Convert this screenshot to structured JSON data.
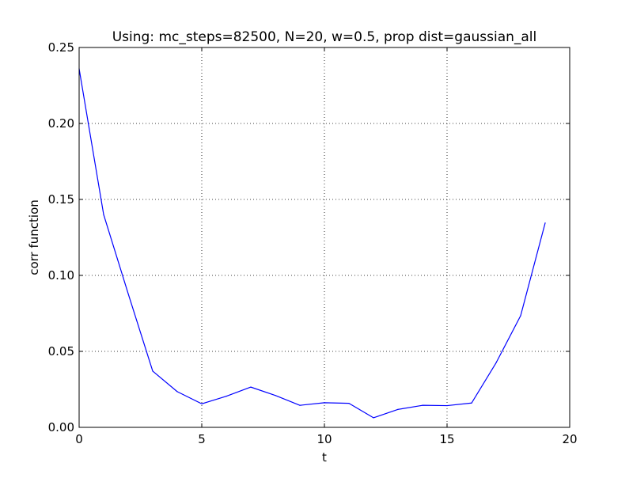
{
  "chart_data": {
    "type": "line",
    "title": "Using: mc_steps=82500, N=20, w=0.5, prop dist=gaussian_all",
    "xlabel": "t",
    "ylabel": "corr function",
    "xlim": [
      0,
      20
    ],
    "ylim": [
      0,
      0.25
    ],
    "xticks": [
      0,
      5,
      10,
      15,
      20
    ],
    "xtick_labels": [
      "0",
      "5",
      "10",
      "15",
      "20"
    ],
    "yticks": [
      0,
      0.05,
      0.1,
      0.15,
      0.2,
      0.25
    ],
    "ytick_labels": [
      "0.00",
      "0.05",
      "0.10",
      "0.15",
      "0.20",
      "0.25"
    ],
    "grid": true,
    "grid_style": "dotted",
    "legend": "none",
    "series": [
      {
        "color": "#0000ff",
        "x": [
          0,
          1,
          2,
          3,
          4,
          5,
          6,
          7,
          8,
          9,
          10,
          11,
          12,
          13,
          14,
          15,
          16,
          17,
          18,
          19
        ],
        "y": [
          0.236,
          0.14,
          0.088,
          0.037,
          0.0235,
          0.0155,
          0.0205,
          0.0265,
          0.021,
          0.0145,
          0.0162,
          0.0158,
          0.0063,
          0.0118,
          0.0145,
          0.0143,
          0.016,
          0.0425,
          0.0735,
          0.1345
        ]
      }
    ]
  }
}
